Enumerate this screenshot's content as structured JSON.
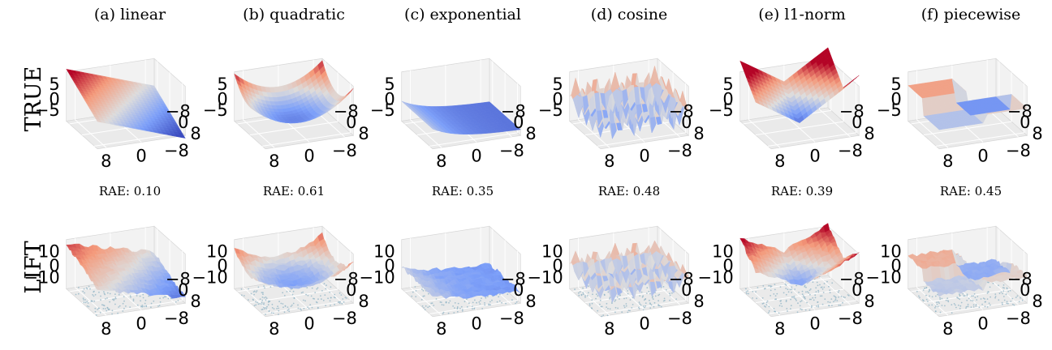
{
  "figure": {
    "row_labels": [
      "TRUE",
      "LIFT"
    ],
    "panels": [
      {
        "title": "(a) linear",
        "function": "linear",
        "rae": "RAE: 0.10"
      },
      {
        "title": "(b) quadratic",
        "function": "quadratic",
        "rae": "RAE: 0.61"
      },
      {
        "title": "(c) exponential",
        "function": "exponential",
        "rae": "RAE: 0.35"
      },
      {
        "title": "(d) cosine",
        "function": "cosine",
        "rae": "RAE: 0.48"
      },
      {
        "title": "(e) l1-norm",
        "function": "l1-norm",
        "rae": "RAE: 0.39"
      },
      {
        "title": "(f) piecewise",
        "function": "piecewise",
        "rae": "RAE: 0.45"
      }
    ]
  },
  "chart_data": [
    {
      "type": "surface",
      "row": "TRUE",
      "title": "(a) linear",
      "x_ticks": [
        "−8",
        "0",
        "8"
      ],
      "y_ticks": [
        "8",
        "0",
        "−8"
      ],
      "z_ticks": [
        "5",
        "0",
        "−5"
      ],
      "zlim": [
        -8,
        10
      ]
    },
    {
      "type": "surface",
      "row": "TRUE",
      "title": "(b) quadratic",
      "x_ticks": [
        "−8",
        "0",
        "8"
      ],
      "y_ticks": [
        "8",
        "0",
        "−8"
      ],
      "z_ticks": [
        "5",
        "0",
        "−5"
      ],
      "zlim": [
        -8,
        10
      ]
    },
    {
      "type": "surface",
      "row": "TRUE",
      "title": "(c) exponential",
      "x_ticks": [
        "−8",
        "0",
        "8"
      ],
      "y_ticks": [
        "8",
        "0",
        "−8"
      ],
      "z_ticks": [
        "5",
        "0",
        "−5"
      ],
      "zlim": [
        -8,
        10
      ]
    },
    {
      "type": "surface",
      "row": "TRUE",
      "title": "(d) cosine",
      "x_ticks": [
        "−8",
        "0",
        "8"
      ],
      "y_ticks": [
        "8",
        "0",
        "−8"
      ],
      "z_ticks": [
        "5",
        "0",
        "−5"
      ],
      "zlim": [
        -8,
        10
      ]
    },
    {
      "type": "surface",
      "row": "TRUE",
      "title": "(e) l1-norm",
      "x_ticks": [
        "−8",
        "0",
        "8"
      ],
      "y_ticks": [
        "8",
        "0",
        "−8"
      ],
      "z_ticks": [
        "5",
        "0",
        "−5"
      ],
      "zlim": [
        -8,
        10
      ]
    },
    {
      "type": "surface",
      "row": "TRUE",
      "title": "(f) piecewise",
      "x_ticks": [
        "−8",
        "0",
        "8"
      ],
      "y_ticks": [
        "8",
        "0",
        "−8"
      ],
      "z_ticks": [
        "5",
        "0",
        "−5"
      ],
      "zlim": [
        -8,
        10
      ]
    },
    {
      "type": "surface",
      "row": "LIFT",
      "title": "(a) linear",
      "rae": 0.1,
      "x_ticks": [
        "−8",
        "0",
        "8"
      ],
      "y_ticks": [
        "8",
        "0",
        "−8"
      ],
      "z_ticks": [
        "10",
        "0",
        "−10"
      ],
      "zlim": [
        -14,
        16
      ]
    },
    {
      "type": "surface",
      "row": "LIFT",
      "title": "(b) quadratic",
      "rae": 0.61,
      "x_ticks": [
        "−8",
        "0",
        "8"
      ],
      "y_ticks": [
        "8",
        "0",
        "−8"
      ],
      "z_ticks": [
        "10",
        "0",
        "−10"
      ],
      "zlim": [
        -14,
        16
      ]
    },
    {
      "type": "surface",
      "row": "LIFT",
      "title": "(c) exponential",
      "rae": 0.35,
      "x_ticks": [
        "−8",
        "0",
        "8"
      ],
      "y_ticks": [
        "8",
        "0",
        "−8"
      ],
      "z_ticks": [
        "10",
        "0",
        "−10"
      ],
      "zlim": [
        -14,
        16
      ]
    },
    {
      "type": "surface",
      "row": "LIFT",
      "title": "(d) cosine",
      "rae": 0.48,
      "x_ticks": [
        "−8",
        "0",
        "8"
      ],
      "y_ticks": [
        "8",
        "0",
        "−8"
      ],
      "z_ticks": [
        "10",
        "0",
        "−10"
      ],
      "zlim": [
        -14,
        16
      ]
    },
    {
      "type": "surface",
      "row": "LIFT",
      "title": "(e) l1-norm",
      "rae": 0.39,
      "x_ticks": [
        "−8",
        "0",
        "8"
      ],
      "y_ticks": [
        "8",
        "0",
        "−8"
      ],
      "z_ticks": [
        "10",
        "0",
        "−10"
      ],
      "zlim": [
        -14,
        16
      ]
    },
    {
      "type": "surface",
      "row": "LIFT",
      "title": "(f) piecewise",
      "rae": 0.45,
      "x_ticks": [
        "−8",
        "0",
        "8"
      ],
      "y_ticks": [
        "8",
        "0",
        "−8"
      ],
      "z_ticks": [
        "10",
        "0",
        "−10"
      ],
      "zlim": [
        -14,
        16
      ]
    }
  ]
}
